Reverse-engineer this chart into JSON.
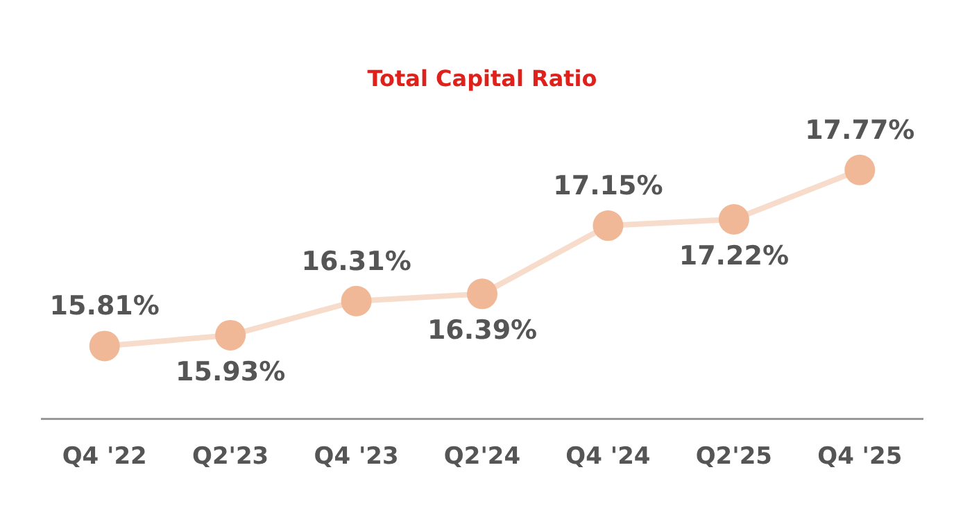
{
  "chart_data": {
    "type": "line",
    "title": "Total Capital Ratio",
    "categories": [
      "Q4 '22",
      "Q2'23",
      "Q4 '23",
      "Q2'24",
      "Q4 '24",
      "Q2'25",
      "Q4 '25"
    ],
    "series": [
      {
        "color": "#f0b896",
        "values": [
          15.81,
          15.93,
          16.31,
          16.39,
          17.15,
          17.22,
          17.77
        ],
        "value_labels": [
          "15.81%",
          "15.93%",
          "16.31%",
          "16.39%",
          "17.15%",
          "17.22%",
          "17.77%"
        ]
      }
    ],
    "tick_labels": "x",
    "grid": false,
    "legend": false,
    "marker": "circle",
    "line_style": "solid"
  }
}
